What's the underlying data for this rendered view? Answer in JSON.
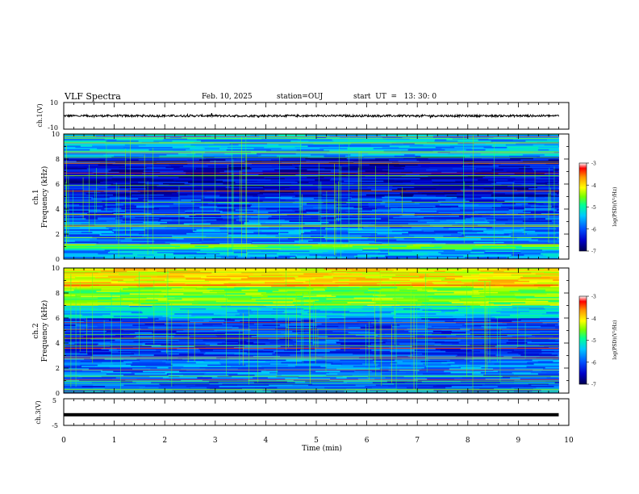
{
  "header": {
    "title": "VLF Spectra",
    "date": "Feb. 10, 2025",
    "station": "station=OUJ",
    "start": "start  UT  =   13: 30: 0"
  },
  "chart_data": [
    {
      "type": "line",
      "name": "ch1-waveform",
      "ylabel": "ch.1(V)",
      "ylim": [
        -10,
        10
      ],
      "tick_labels": [
        "10",
        "-10"
      ],
      "xlim": [
        0,
        10
      ],
      "description_level": "noisy waveform around 0 V, amplitude ~±1 V, from 0 to ~9.8 min"
    },
    {
      "type": "heatmap",
      "name": "ch1-spectrogram",
      "ylabel": "ch.1\nFrequency (kHz)",
      "ylabel_lines": [
        "ch.1",
        "Frequency (kHz)"
      ],
      "ylim": [
        0,
        10
      ],
      "yticks": [
        "0",
        "2",
        "4",
        "6",
        "8",
        "10"
      ],
      "xlim": [
        0,
        10
      ],
      "data_until_min": 9.8,
      "colorbar": {
        "label": "log(PSD)(V²/Hz)",
        "ticks": [
          "-3",
          "-4",
          "-5",
          "-6",
          "-7"
        ],
        "range": [
          -7,
          -3
        ]
      }
    },
    {
      "type": "heatmap",
      "name": "ch2-spectrogram",
      "ylabel": "ch.2\nFrequency (kHz)",
      "ylabel_lines": [
        "ch.2",
        "Frequency (kHz)"
      ],
      "ylim": [
        0,
        10
      ],
      "yticks": [
        "0",
        "2",
        "4",
        "6",
        "8",
        "10"
      ],
      "xlim": [
        0,
        10
      ],
      "data_until_min": 9.8,
      "colorbar": {
        "label": "log(PSD)(V²/Hz)",
        "ticks": [
          "-3",
          "-4",
          "-5",
          "-6",
          "-7"
        ],
        "range": [
          -7,
          -3
        ]
      }
    },
    {
      "type": "line",
      "name": "ch3-waveform",
      "ylabel": "ch.3(V)",
      "ylim": [
        -5,
        5
      ],
      "tick_labels": [
        "5",
        "-5"
      ],
      "xlim": [
        0,
        10
      ],
      "level": -1
    }
  ],
  "xaxis": {
    "label": "Time  (min)",
    "ticks": [
      "0",
      "1",
      "2",
      "3",
      "4",
      "5",
      "6",
      "7",
      "8",
      "9",
      "10"
    ]
  },
  "colormap": [
    "#000050",
    "#0000c8",
    "#0050ff",
    "#00c8ff",
    "#00ff96",
    "#78ff00",
    "#ffff00",
    "#ff9600",
    "#ff0000",
    "#ffffff"
  ]
}
